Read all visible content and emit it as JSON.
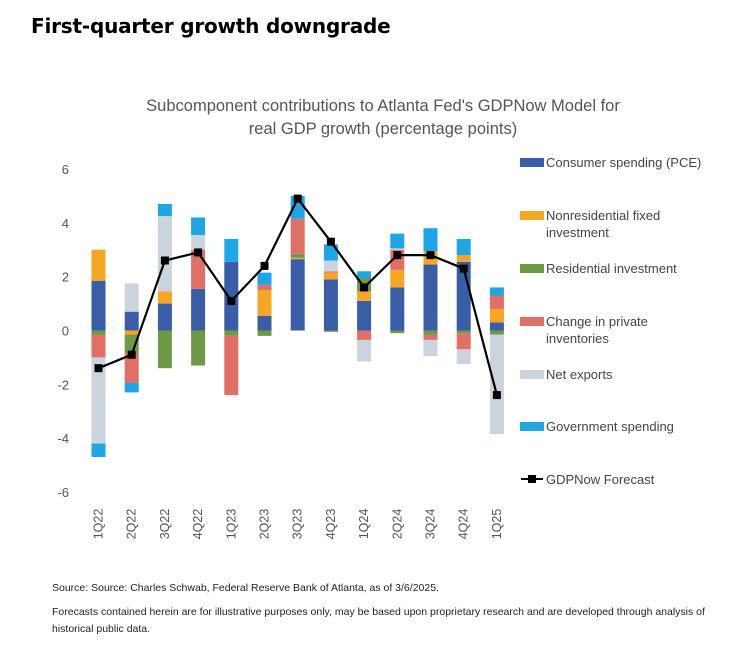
{
  "page": {
    "title": "First-quarter growth downgrade",
    "source": "Source: Source: Charles Schwab, Federal Reserve Bank of Atlanta, as of 3/6/2025.",
    "disclaimer": "Forecasts contained herein are for illustrative purposes only, may be based upon proprietary research and are developed through analysis of historical public data."
  },
  "chart_data": {
    "type": "bar",
    "stacked": true,
    "title": "Subcomponent contributions to Atlanta Fed's GDPNow Model for real GDP growth  (percentage points)",
    "title_lines": [
      "Subcomponent contributions to Atlanta Fed's GDPNow Model for",
      "real GDP growth  (percentage points)"
    ],
    "xlabel": "",
    "ylabel": "",
    "ylim": [
      -6,
      6
    ],
    "yticks": [
      -6,
      -4,
      -2,
      0,
      2,
      4,
      6
    ],
    "ytick_labels": [
      "-6",
      "-4",
      "-2",
      "0",
      "2",
      "4",
      "6"
    ],
    "grid": false,
    "legend_position": "right",
    "categories": [
      "1Q22",
      "2Q22",
      "3Q22",
      "4Q22",
      "1Q23",
      "2Q23",
      "3Q23",
      "4Q23",
      "1Q24",
      "2Q24",
      "3Q24",
      "4Q24",
      "1Q25"
    ],
    "series": [
      {
        "name": "Consumer spending (PCE)",
        "color": "#3a5da8",
        "values": [
          1.85,
          0.7,
          1.0,
          1.55,
          2.55,
          0.55,
          2.65,
          1.9,
          1.1,
          1.6,
          2.45,
          2.55,
          0.3
        ]
      },
      {
        "name": "Nonresidential fixed investment",
        "color": "#f5a623",
        "values": [
          1.15,
          -0.15,
          0.45,
          0.0,
          0.0,
          0.95,
          0.05,
          0.25,
          0.35,
          0.65,
          0.5,
          0.25,
          0.5
        ]
      },
      {
        "name": "Residential investment",
        "color": "#6e9a45",
        "values": [
          -0.15,
          -0.7,
          -1.4,
          -1.3,
          -0.2,
          -0.2,
          0.15,
          -0.05,
          0.5,
          -0.1,
          -0.15,
          -0.1,
          -0.15
        ]
      },
      {
        "name": "Change in private inventories",
        "color": "#e07065",
        "values": [
          -0.85,
          -1.1,
          0.0,
          1.45,
          -2.2,
          0.2,
          1.3,
          0.05,
          -0.35,
          0.75,
          -0.2,
          -0.6,
          0.5
        ]
      },
      {
        "name": "Net exports",
        "color": "#cbd3dc",
        "values": [
          -3.2,
          1.05,
          2.8,
          0.55,
          0.0,
          0.0,
          0.0,
          0.4,
          -0.8,
          0.05,
          -0.6,
          -0.55,
          -3.7
        ]
      },
      {
        "name": "Government spending",
        "color": "#1ea6e6",
        "values": [
          -0.5,
          -0.35,
          0.45,
          0.65,
          0.85,
          0.45,
          0.85,
          0.6,
          0.25,
          0.55,
          0.85,
          0.6,
          0.3
        ]
      }
    ],
    "line": {
      "name": "GDPNow Forecast",
      "color": "#000000",
      "values": [
        -1.4,
        -0.9,
        2.6,
        2.9,
        1.1,
        2.4,
        4.9,
        3.3,
        1.6,
        2.8,
        2.8,
        2.3,
        -2.4
      ]
    },
    "legend_order": [
      "Consumer spending (PCE)",
      "Nonresidential fixed investment",
      "Residential investment",
      "Change in private inventories",
      "Net exports",
      "Government spending",
      "GDPNow Forecast"
    ],
    "legend_lines": {
      "Consumer spending (PCE)": [
        "Consumer spending (PCE)"
      ],
      "Nonresidential fixed investment": [
        "Nonresidential fixed",
        "investment"
      ],
      "Residential investment": [
        "Residential investment"
      ],
      "Change in private inventories": [
        "Change in private",
        "inventories"
      ],
      "Net exports": [
        "Net exports"
      ],
      "Government spending": [
        "Government spending"
      ],
      "GDPNow Forecast": [
        "GDPNow Forecast"
      ]
    }
  }
}
